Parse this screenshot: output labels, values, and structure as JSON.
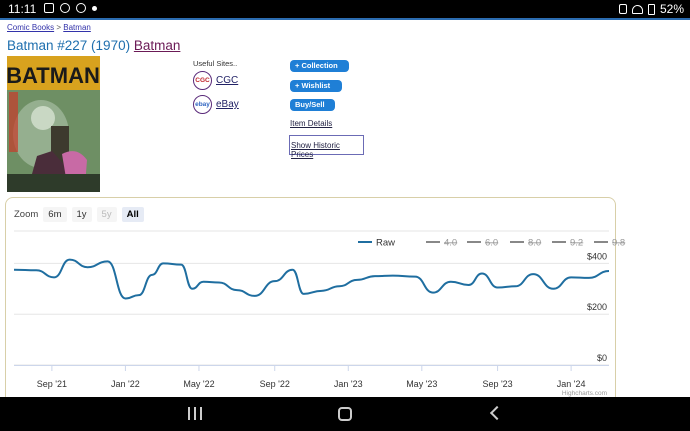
{
  "status_bar": {
    "time": "11:11",
    "battery": "52%"
  },
  "breadcrumb": {
    "items": [
      "Comic Books",
      "Batman"
    ],
    "separator": ">"
  },
  "title": {
    "text": "Batman #227 (1970)",
    "link": "Batman"
  },
  "cover": {
    "masthead": "BATMAN"
  },
  "useful_sites": {
    "heading": "Useful Sites..",
    "sites": [
      {
        "name": "CGC",
        "logo": "CGC"
      },
      {
        "name": "eBay",
        "logo": "ebay"
      }
    ]
  },
  "actions": {
    "collection": "+ Collection",
    "wishlist": "+ Wishlist",
    "buysell": "Buy/Sell",
    "item_details": "Item Details",
    "historic": "Show Historic Prices"
  },
  "zoom": {
    "label": "Zoom",
    "options": [
      "6m",
      "1y",
      "5y",
      "All"
    ],
    "selected": "All",
    "disabled": [
      "5y"
    ]
  },
  "credit": "Highcharts.com",
  "colors": {
    "series": "#1f6ea0",
    "accent": "#1f7fd6",
    "title": "#1f6fae"
  },
  "chart_data": {
    "type": "line",
    "legend": [
      "Raw",
      "4.0",
      "6.0",
      "8.0",
      "9.2",
      "9.8"
    ],
    "legend_hidden": [
      "4.0",
      "6.0",
      "8.0",
      "9.2",
      "9.8"
    ],
    "legend_position": "top-right",
    "y_ticks": [
      "$400",
      "$200",
      "$0"
    ],
    "y_tick_values": [
      400,
      200,
      0
    ],
    "ylim": [
      0,
      500
    ],
    "x_ticks": [
      "Sep '21",
      "Jan '22",
      "May '22",
      "Sep '22",
      "Jan '23",
      "May '23",
      "Sep '23",
      "Jan '24"
    ],
    "x_tick_values": [
      2021.67,
      2022.0,
      2022.33,
      2022.67,
      2023.0,
      2023.33,
      2023.67,
      2024.0
    ],
    "xlim": [
      2021.5,
      2024.17
    ],
    "series": [
      {
        "name": "Raw",
        "x": [
          2021.5,
          2021.6,
          2021.68,
          2021.75,
          2021.83,
          2021.92,
          2022.0,
          2022.06,
          2022.12,
          2022.17,
          2022.25,
          2022.3,
          2022.35,
          2022.42,
          2022.5,
          2022.58,
          2022.67,
          2022.75,
          2022.8,
          2022.88,
          2022.96,
          2023.04,
          2023.12,
          2023.2,
          2023.3,
          2023.38,
          2023.46,
          2023.54,
          2023.6,
          2023.67,
          2023.75,
          2023.83,
          2023.92,
          2024.0,
          2024.08,
          2024.17
        ],
        "y": [
          375,
          373,
          345,
          415,
          385,
          408,
          262,
          275,
          355,
          400,
          395,
          300,
          328,
          325,
          295,
          272,
          330,
          375,
          280,
          292,
          310,
          335,
          350,
          352,
          348,
          285,
          328,
          315,
          360,
          305,
          310,
          358,
          300,
          345,
          343,
          370
        ]
      }
    ]
  }
}
